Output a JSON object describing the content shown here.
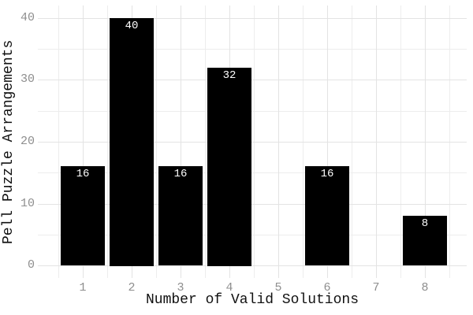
{
  "chart_data": {
    "type": "bar",
    "title": "",
    "xlabel": "Number of Valid Solutions",
    "ylabel": "Pell Puzzle Arrangements",
    "categories": [
      "1",
      "2",
      "3",
      "4",
      "5",
      "6",
      "7",
      "8"
    ],
    "values": [
      16,
      40,
      16,
      32,
      null,
      16,
      null,
      8
    ],
    "bar_value_labels": [
      "16",
      "40",
      "16",
      "32",
      "",
      "16",
      "",
      "8"
    ],
    "y_major_ticks": [
      0,
      10,
      20,
      30,
      40
    ],
    "y_minor_ticks": [
      5,
      15,
      25,
      35
    ],
    "ylim": [
      -2,
      42
    ],
    "grid": true,
    "legend": false,
    "colors": {
      "background": "#ffffff",
      "bar_fill": "#000000",
      "bar_label_text": "#ffffff",
      "grid_major": "#e3e3e3",
      "grid_minor": "#ededed",
      "tick_label_text": "#8e8e8e",
      "axis_title_text": "#111111"
    }
  }
}
